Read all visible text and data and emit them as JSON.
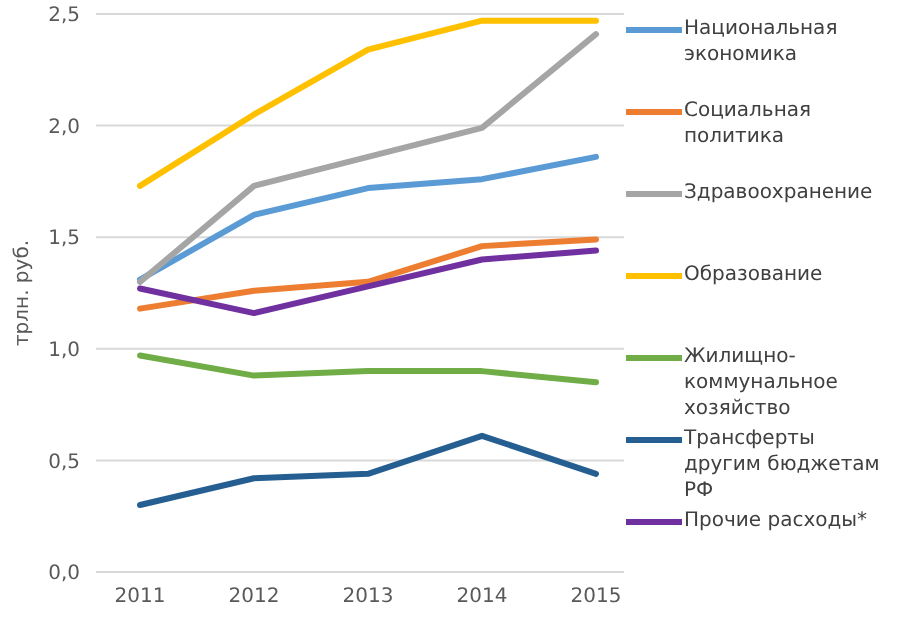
{
  "chart_data": {
    "type": "line",
    "ylabel": "трлн. руб.",
    "categories": [
      "2011",
      "2012",
      "2013",
      "2014",
      "2015"
    ],
    "ylim": [
      0,
      2.5
    ],
    "yticks": [
      {
        "value": 0,
        "label": "0,0"
      },
      {
        "value": 0.5,
        "label": "0,5"
      },
      {
        "value": 1,
        "label": "1,0"
      },
      {
        "value": 1.5,
        "label": "1,5"
      },
      {
        "value": 2,
        "label": "2,0"
      },
      {
        "value": 2.5,
        "label": "2,5"
      }
    ],
    "grid": "y",
    "legend": "right",
    "marker": "none",
    "line_style": "solid",
    "series": [
      {
        "name": "Национальная экономика",
        "color": "#5b9bd5",
        "values": [
          1.31,
          1.6,
          1.72,
          1.76,
          1.86
        ]
      },
      {
        "name": "Социальная политика",
        "color": "#ed7d31",
        "values": [
          1.18,
          1.26,
          1.3,
          1.46,
          1.49
        ]
      },
      {
        "name": "Здравоохранение",
        "color": "#a5a5a5",
        "values": [
          1.3,
          1.73,
          1.86,
          1.99,
          2.41
        ]
      },
      {
        "name": "Образование",
        "color": "#ffc000",
        "values": [
          1.73,
          2.05,
          2.34,
          2.47,
          2.47
        ]
      },
      {
        "name": "Жилищно-коммунальное хозяйство",
        "color": "#70ad47",
        "values": [
          0.97,
          0.88,
          0.9,
          0.9,
          0.85
        ]
      },
      {
        "name": "Трансферты другим бюджетам РФ",
        "color": "#255e91",
        "values": [
          0.3,
          0.42,
          0.44,
          0.61,
          0.44
        ]
      },
      {
        "name": "Прочие расходы*",
        "color": "#7030a0",
        "values": [
          1.27,
          1.16,
          1.28,
          1.4,
          1.44
        ]
      }
    ]
  }
}
